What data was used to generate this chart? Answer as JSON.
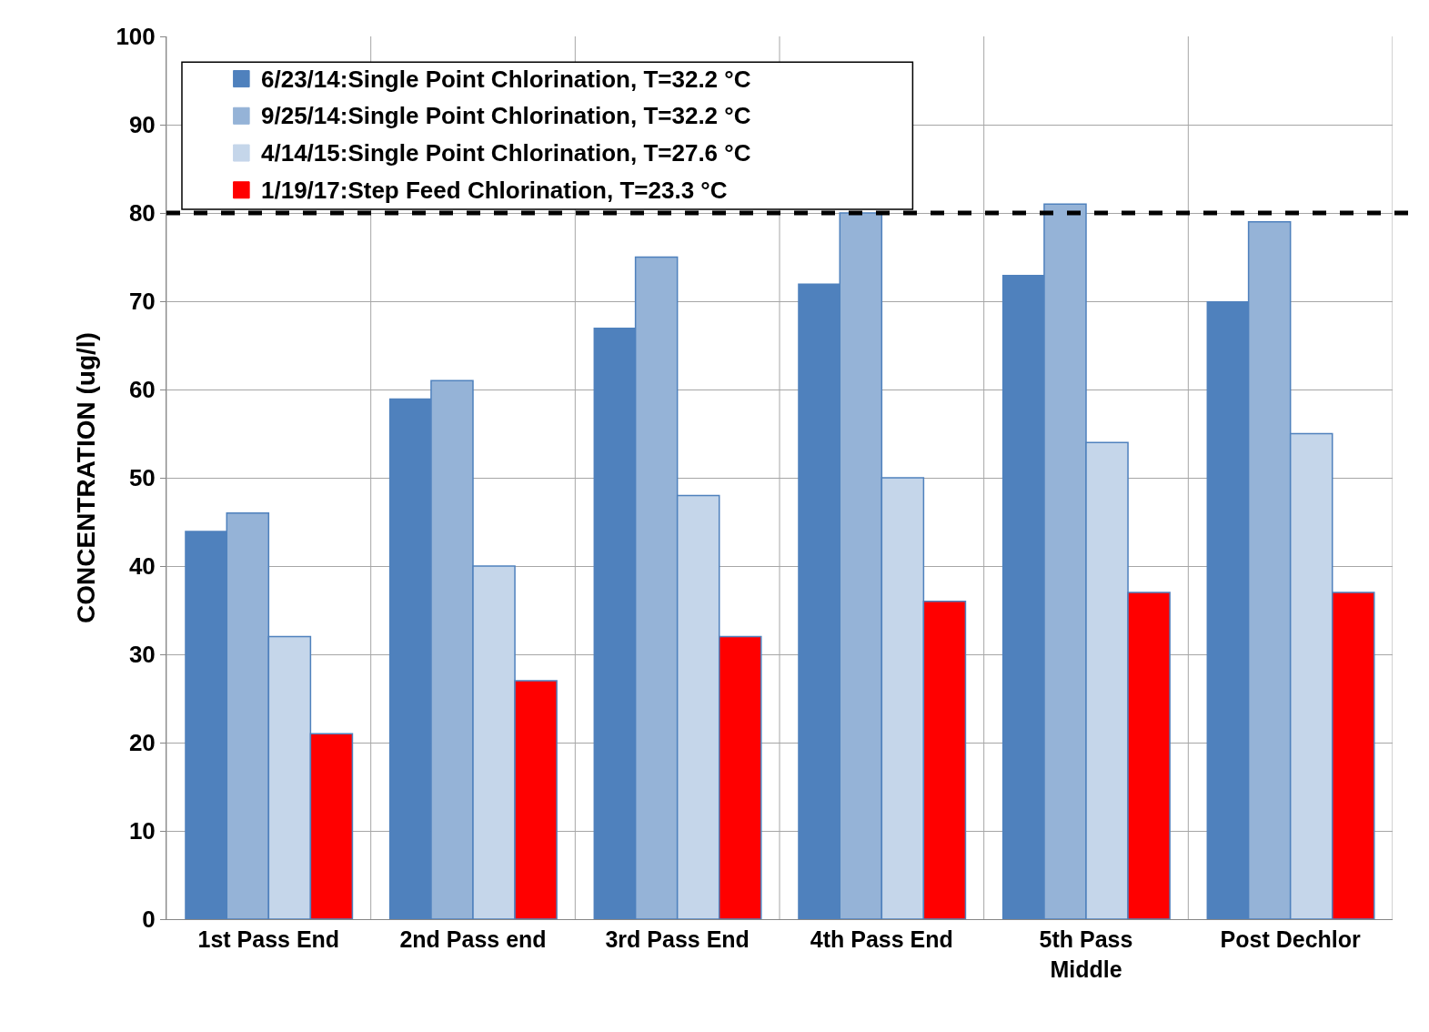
{
  "chart_data": {
    "type": "bar",
    "ylabel": "CONCENTRATION (ug/l)",
    "categories": [
      "1st Pass End",
      "2nd Pass end",
      "3rd Pass End",
      "4th Pass End",
      "5th Pass Middle",
      "Post Dechlor"
    ],
    "series": [
      {
        "name": "6/23/14:Single Point Chlorination, T=32.2 °C",
        "color": "#4f81bd",
        "values": [
          44,
          59,
          67,
          72,
          73,
          70
        ]
      },
      {
        "name": "9/25/14:Single Point Chlorination, T=32.2 °C",
        "color": "#95b3d7",
        "values": [
          46,
          61,
          75,
          80,
          81,
          79
        ]
      },
      {
        "name": "4/14/15:Single Point Chlorination, T=27.6 °C",
        "color": "#c5d6ea",
        "values": [
          32,
          40,
          48,
          50,
          54,
          55
        ]
      },
      {
        "name": "1/19/17:Step Feed Chlorination, T=23.3 °C",
        "color": "#ff0000",
        "values": [
          21,
          27,
          32,
          36,
          37,
          37
        ]
      }
    ],
    "ylim": [
      0,
      100
    ],
    "yticks": [
      0,
      10,
      20,
      30,
      40,
      50,
      60,
      70,
      80,
      90,
      100
    ],
    "ref_lines": [
      {
        "axis": "y",
        "value": 80,
        "color": "#000000",
        "line_style": "dashed"
      }
    ],
    "grid": true,
    "legend": "top left"
  }
}
